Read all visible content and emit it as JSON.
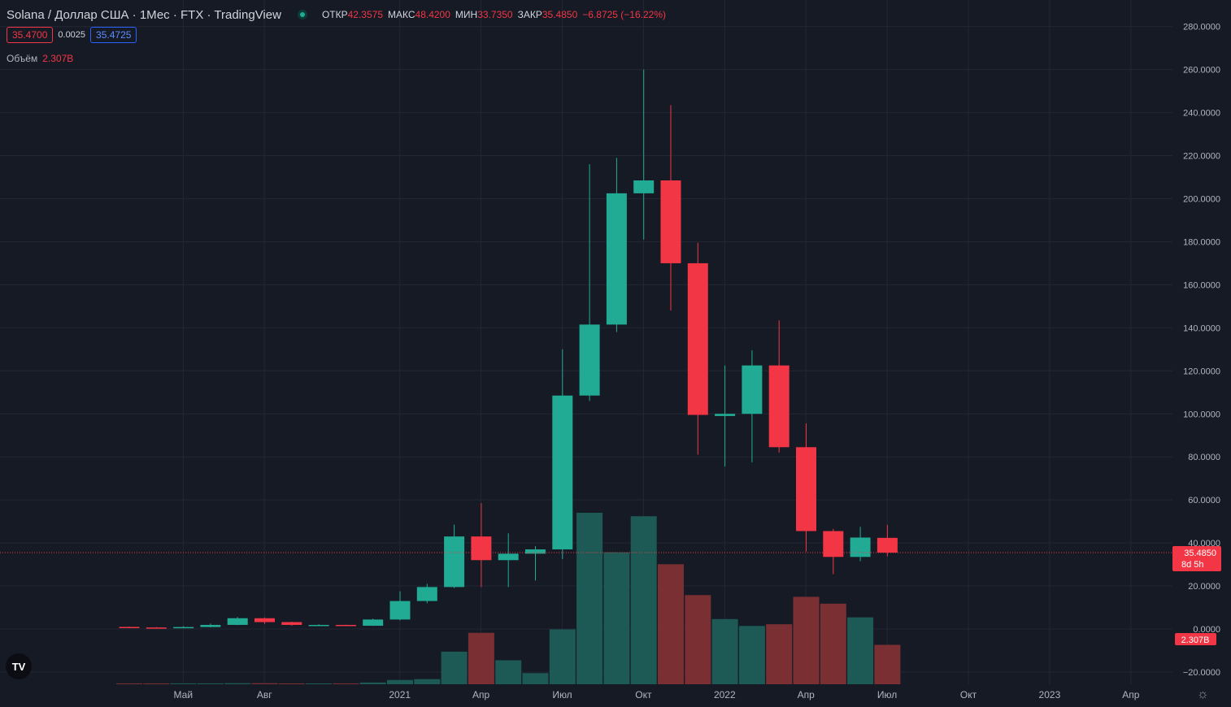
{
  "header": {
    "title": "Solana / Доллар США · 1Мес · FTX · TradingView",
    "open_label": "ОТКР",
    "open_value": "42.3575",
    "high_label": "МАКС",
    "high_value": "48.4200",
    "low_label": "МИН",
    "low_value": "33.7350",
    "close_label": "ЗАКР",
    "close_value": "35.4850",
    "change": "−6.8725 (−16.22%)"
  },
  "quote": {
    "sell": "35.4700",
    "spread": "0.0025",
    "buy": "35.4725"
  },
  "volume_legend": {
    "label": "Объём",
    "value": "2.307B"
  },
  "logo_text": "TV",
  "colors": {
    "up": "#22ab94",
    "down": "#f23645",
    "background": "#161a25",
    "grid": "#232734"
  },
  "chart_data": {
    "type": "candlestick",
    "y_ticks": [
      "280.0000",
      "260.0000",
      "240.0000",
      "220.0000",
      "200.0000",
      "180.0000",
      "160.0000",
      "140.0000",
      "120.0000",
      "100.0000",
      "80.0000",
      "60.0000",
      "40.0000",
      "20.0000",
      "0.0000",
      "−20.0000"
    ],
    "ylim": [
      -20,
      280
    ],
    "x_ticks": [
      {
        "label": "Май",
        "month": "2020-05"
      },
      {
        "label": "Авг",
        "month": "2020-08"
      },
      {
        "label": "2021",
        "month": "2021-01"
      },
      {
        "label": "Апр",
        "month": "2021-04"
      },
      {
        "label": "Июл",
        "month": "2021-07"
      },
      {
        "label": "Окт",
        "month": "2021-10"
      },
      {
        "label": "2022",
        "month": "2022-01"
      },
      {
        "label": "Апр",
        "month": "2022-04"
      },
      {
        "label": "Июл",
        "month": "2022-07"
      },
      {
        "label": "Окт",
        "month": "2022-10"
      },
      {
        "label": "2023",
        "month": "2023-01"
      },
      {
        "label": "Апр",
        "month": "2023-04"
      }
    ],
    "last_price": "35.4850",
    "countdown": "8d 5h",
    "last_volume": "2.307B",
    "candles": [
      {
        "month": "2020-04",
        "o": 0.95,
        "h": 1.1,
        "l": 0.6,
        "c": 0.7,
        "vol_frac": 0.005
      },
      {
        "month": "2020-05",
        "o": 0.7,
        "h": 0.9,
        "l": 0.5,
        "c": 0.6,
        "vol_frac": 0.005
      },
      {
        "month": "2020-06",
        "o": 0.6,
        "h": 1.3,
        "l": 0.55,
        "c": 0.9,
        "vol_frac": 0.005
      },
      {
        "month": "2020-07",
        "o": 0.9,
        "h": 2.5,
        "l": 0.8,
        "c": 1.9,
        "vol_frac": 0.005
      },
      {
        "month": "2020-08",
        "o": 1.9,
        "h": 5.6,
        "l": 1.8,
        "c": 5.0,
        "vol_frac": 0.006
      },
      {
        "month": "2020-09",
        "o": 5.0,
        "h": 5.4,
        "l": 2.3,
        "c": 3.2,
        "vol_frac": 0.006
      },
      {
        "month": "2020-10",
        "o": 3.2,
        "h": 3.4,
        "l": 1.5,
        "c": 1.9,
        "vol_frac": 0.004
      },
      {
        "month": "2020-11",
        "o": 1.9,
        "h": 2.2,
        "l": 1.5,
        "c": 1.9,
        "vol_frac": 0.004
      },
      {
        "month": "2020-12",
        "o": 1.9,
        "h": 2.0,
        "l": 1.5,
        "c": 1.5,
        "vol_frac": 0.005
      },
      {
        "month": "2021-01",
        "o": 1.5,
        "h": 4.8,
        "l": 1.4,
        "c": 4.4,
        "vol_frac": 0.01
      },
      {
        "month": "2021-02",
        "o": 4.4,
        "h": 17.5,
        "l": 4.0,
        "c": 13.0,
        "vol_frac": 0.025
      },
      {
        "month": "2021-03",
        "o": 13.0,
        "h": 21.0,
        "l": 12.0,
        "c": 19.5,
        "vol_frac": 0.03
      },
      {
        "month": "2021-04",
        "o": 19.5,
        "h": 48.5,
        "l": 19.0,
        "c": 43.0,
        "vol_frac": 0.19
      },
      {
        "month": "2021-05",
        "o": 43.0,
        "h": 58.5,
        "l": 19.5,
        "c": 32.0,
        "vol_frac": 0.3
      },
      {
        "month": "2021-06",
        "o": 32.0,
        "h": 44.5,
        "l": 19.5,
        "c": 35.0,
        "vol_frac": 0.14
      },
      {
        "month": "2021-07",
        "o": 35.0,
        "h": 38.5,
        "l": 22.5,
        "c": 37.0,
        "vol_frac": 0.065
      },
      {
        "month": "2021-08",
        "o": 37.0,
        "h": 130.0,
        "l": 32.5,
        "c": 108.5,
        "vol_frac": 0.32
      },
      {
        "month": "2021-09",
        "o": 108.5,
        "h": 216.0,
        "l": 106.0,
        "c": 141.5,
        "vol_frac": 1.0
      },
      {
        "month": "2021-10",
        "o": 141.5,
        "h": 219.0,
        "l": 138.0,
        "c": 202.5,
        "vol_frac": 0.77
      },
      {
        "month": "2021-11",
        "o": 202.5,
        "h": 260.0,
        "l": 181.0,
        "c": 208.5,
        "vol_frac": 0.98
      },
      {
        "month": "2021-12",
        "o": 208.5,
        "h": 243.5,
        "l": 148.0,
        "c": 170.0,
        "vol_frac": 0.7
      },
      {
        "month": "2022-01",
        "o": 170.0,
        "h": 179.5,
        "l": 81.0,
        "c": 99.5,
        "vol_frac": 0.52
      },
      {
        "month": "2022-02",
        "o": 99.0,
        "h": 122.5,
        "l": 75.5,
        "c": 100.0,
        "vol_frac": 0.38
      },
      {
        "month": "2022-03",
        "o": 100.0,
        "h": 129.5,
        "l": 77.5,
        "c": 122.5,
        "vol_frac": 0.34
      },
      {
        "month": "2022-04",
        "o": 122.5,
        "h": 143.5,
        "l": 82.0,
        "c": 84.5,
        "vol_frac": 0.35
      },
      {
        "month": "2022-05",
        "o": 84.5,
        "h": 95.5,
        "l": 36.0,
        "c": 45.5,
        "vol_frac": 0.51
      },
      {
        "month": "2022-06",
        "o": 45.5,
        "h": 46.5,
        "l": 25.5,
        "c": 33.5,
        "vol_frac": 0.47
      },
      {
        "month": "2022-07",
        "o": 33.5,
        "h": 47.5,
        "l": 31.5,
        "c": 42.5,
        "vol_frac": 0.39
      },
      {
        "month": "2022-08",
        "o": 42.3575,
        "h": 48.42,
        "l": 33.735,
        "c": 35.485,
        "vol_frac": 0.23
      }
    ]
  }
}
